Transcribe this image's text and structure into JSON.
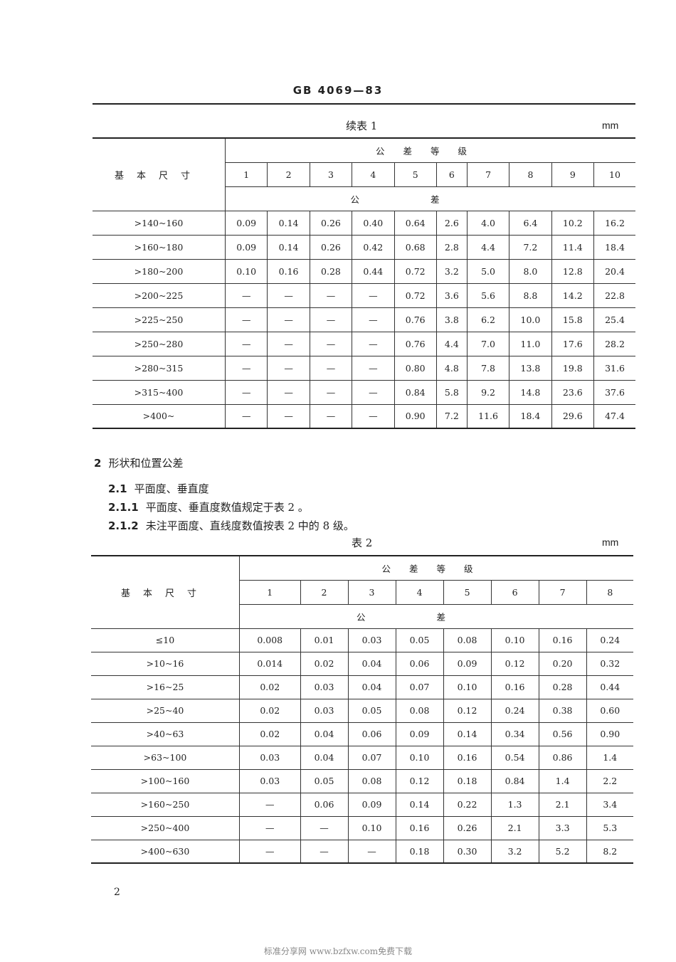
{
  "header": {
    "title": "GB 4069—83"
  },
  "table1": {
    "caption": "续表 1",
    "unit": "mm",
    "row_header": "基本尺寸",
    "grade_label": "公差等级",
    "tol_label": "公差",
    "grades": [
      "1",
      "2",
      "3",
      "4",
      "5",
      "6",
      "7",
      "8",
      "9",
      "10"
    ],
    "rows": [
      {
        "size": ">140~160",
        "values": [
          "0.09",
          "0.14",
          "0.26",
          "0.40",
          "0.64",
          "2.6",
          "4.0",
          "6.4",
          "10.2",
          "16.2"
        ]
      },
      {
        "size": ">160~180",
        "values": [
          "0.09",
          "0.14",
          "0.26",
          "0.42",
          "0.68",
          "2.8",
          "4.4",
          "7.2",
          "11.4",
          "18.4"
        ]
      },
      {
        "size": ">180~200",
        "values": [
          "0.10",
          "0.16",
          "0.28",
          "0.44",
          "0.72",
          "3.2",
          "5.0",
          "8.0",
          "12.8",
          "20.4"
        ]
      },
      {
        "size": ">200~225",
        "values": [
          "—",
          "—",
          "—",
          "—",
          "0.72",
          "3.6",
          "5.6",
          "8.8",
          "14.2",
          "22.8"
        ]
      },
      {
        "size": ">225~250",
        "values": [
          "—",
          "—",
          "—",
          "—",
          "0.76",
          "3.8",
          "6.2",
          "10.0",
          "15.8",
          "25.4"
        ]
      },
      {
        "size": ">250~280",
        "values": [
          "—",
          "—",
          "—",
          "—",
          "0.76",
          "4.4",
          "7.0",
          "11.0",
          "17.6",
          "28.2"
        ]
      },
      {
        "size": ">280~315",
        "values": [
          "—",
          "—",
          "—",
          "—",
          "0.80",
          "4.8",
          "7.8",
          "13.8",
          "19.8",
          "31.6"
        ]
      },
      {
        "size": ">315~400",
        "values": [
          "—",
          "—",
          "—",
          "—",
          "0.84",
          "5.8",
          "9.2",
          "14.8",
          "23.6",
          "37.6"
        ]
      },
      {
        "size": ">400~",
        "values": [
          "—",
          "—",
          "—",
          "—",
          "0.90",
          "7.2",
          "11.6",
          "18.4",
          "29.6",
          "47.4"
        ]
      }
    ]
  },
  "section": {
    "s2": {
      "num": "2",
      "text": "形状和位置公差"
    },
    "s21": {
      "num": "2.1",
      "text": "平面度、垂直度"
    },
    "s211": {
      "num": "2.1.1",
      "text": "平面度、垂直度数值规定于表 2 。"
    },
    "s212": {
      "num": "2.1.2",
      "text": "未注平面度、直线度数值按表 2 中的 8 级。"
    }
  },
  "table2": {
    "caption": "表 2",
    "unit": "mm",
    "row_header": "基本尺寸",
    "grade_label": "公差等级",
    "tol_label": "公差",
    "grades": [
      "1",
      "2",
      "3",
      "4",
      "5",
      "6",
      "7",
      "8"
    ],
    "rows": [
      {
        "size": "≤10",
        "values": [
          "0.008",
          "0.01",
          "0.03",
          "0.05",
          "0.08",
          "0.10",
          "0.16",
          "0.24"
        ]
      },
      {
        "size": ">10~16",
        "values": [
          "0.014",
          "0.02",
          "0.04",
          "0.06",
          "0.09",
          "0.12",
          "0.20",
          "0.32"
        ]
      },
      {
        "size": ">16~25",
        "values": [
          "0.02",
          "0.03",
          "0.04",
          "0.07",
          "0.10",
          "0.16",
          "0.28",
          "0.44"
        ]
      },
      {
        "size": ">25~40",
        "values": [
          "0.02",
          "0.03",
          "0.05",
          "0.08",
          "0.12",
          "0.24",
          "0.38",
          "0.60"
        ]
      },
      {
        "size": ">40~63",
        "values": [
          "0.02",
          "0.04",
          "0.06",
          "0.09",
          "0.14",
          "0.34",
          "0.56",
          "0.90"
        ]
      },
      {
        "size": ">63~100",
        "values": [
          "0.03",
          "0.04",
          "0.07",
          "0.10",
          "0.16",
          "0.54",
          "0.86",
          "1.4"
        ]
      },
      {
        "size": ">100~160",
        "values": [
          "0.03",
          "0.05",
          "0.08",
          "0.12",
          "0.18",
          "0.84",
          "1.4",
          "2.2"
        ]
      },
      {
        "size": ">160~250",
        "values": [
          "—",
          "0.06",
          "0.09",
          "0.14",
          "0.22",
          "1.3",
          "2.1",
          "3.4"
        ]
      },
      {
        "size": ">250~400",
        "values": [
          "—",
          "—",
          "0.10",
          "0.16",
          "0.26",
          "2.1",
          "3.3",
          "5.3"
        ]
      },
      {
        "size": ">400~630",
        "values": [
          "—",
          "—",
          "—",
          "0.18",
          "0.30",
          "3.2",
          "5.2",
          "8.2"
        ]
      }
    ]
  },
  "page_number": "2",
  "footer": "标准分享网 www.bzfxw.com免费下载"
}
